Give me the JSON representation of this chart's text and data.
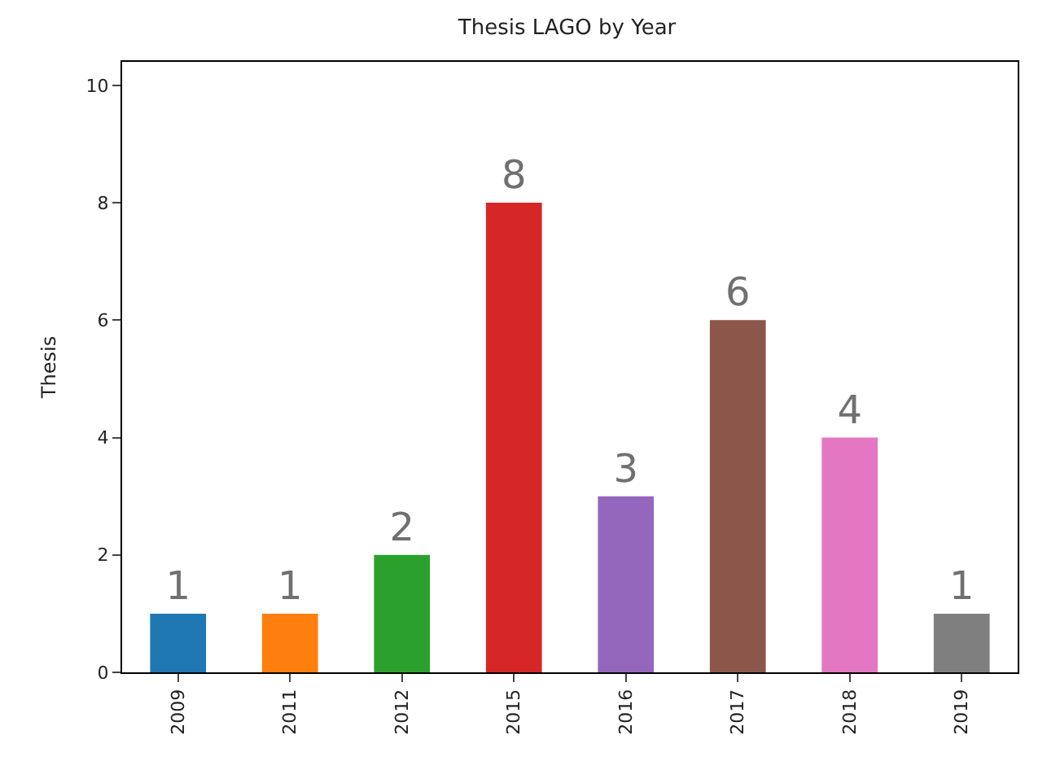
{
  "chart_data": {
    "type": "bar",
    "title": "Thesis LAGO by Year",
    "ylabel": "Thesis",
    "categories": [
      "2009",
      "2011",
      "2012",
      "2015",
      "2016",
      "2017",
      "2018",
      "2019"
    ],
    "values": [
      1,
      1,
      2,
      8,
      3,
      6,
      4,
      1
    ],
    "colors": [
      "#1f77b4",
      "#ff7f0e",
      "#2ca02c",
      "#d62728",
      "#9467bd",
      "#8c564b",
      "#e377c2",
      "#7f7f7f"
    ],
    "ylim": [
      0,
      10.4
    ],
    "yticks": [
      0,
      2,
      4,
      6,
      8,
      10
    ],
    "data_labels": true
  }
}
